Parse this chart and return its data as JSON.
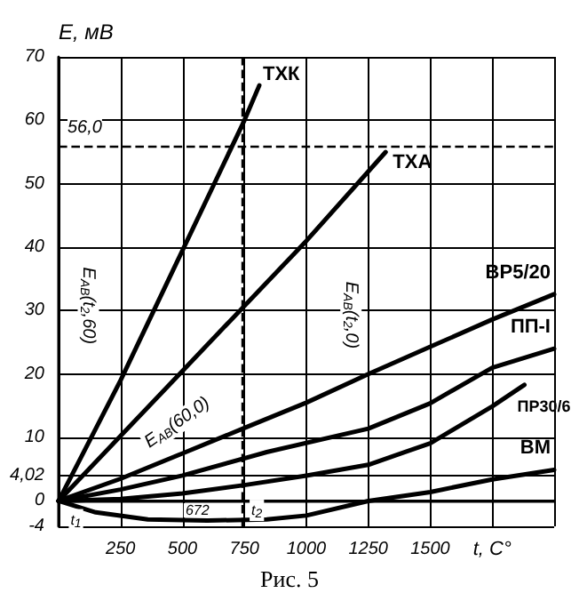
{
  "chart_data": {
    "type": "line",
    "xlabel": "t, C°",
    "ylabel": "E, мВ",
    "xlim": [
      0,
      2000
    ],
    "xticks": [
      {
        "value": 0,
        "label": null
      },
      250,
      500,
      750,
      1000,
      1250,
      1500,
      {
        "value": 1750,
        "label": null
      },
      {
        "value": 2000,
        "label": null
      }
    ],
    "ylim": [
      -4,
      70
    ],
    "yticks": [
      -4,
      0,
      {
        "value": 4.02,
        "label": "4,02"
      },
      10,
      20,
      30,
      40,
      50,
      60,
      70
    ],
    "grid": true,
    "line_style": "solid",
    "legend": false,
    "series": [
      {
        "name": "ТХК",
        "color": "#000000",
        "x": [
          0,
          250,
          500,
          750,
          810
        ],
        "values": [
          0,
          19,
          39.5,
          60,
          65.5
        ]
      },
      {
        "name": "ТХА",
        "color": "#000000",
        "x": [
          0,
          500,
          1000,
          1320
        ],
        "values": [
          0,
          20.5,
          41,
          55
        ]
      },
      {
        "name": "ВР5/20",
        "color": "#000000",
        "x": [
          0,
          250,
          500,
          750,
          1000,
          1250,
          1500,
          1750,
          2000
        ],
        "values": [
          0,
          3.5,
          7.5,
          11.5,
          15.5,
          20,
          24.3,
          28.6,
          32.6
        ]
      },
      {
        "name": "ПП-I",
        "color": "#000000",
        "x": [
          0,
          250,
          500,
          840,
          1250,
          1500,
          1750,
          2000
        ],
        "values": [
          0,
          1.8,
          4,
          7.7,
          11.4,
          15.4,
          21,
          24
        ]
      },
      {
        "name": "ПР30/6",
        "color": "#000000",
        "x": [
          0,
          250,
          500,
          750,
          1000,
          1250,
          1500,
          1750,
          1880
        ],
        "values": [
          0,
          0.3,
          1.2,
          2.5,
          4,
          5.7,
          9.1,
          14.9,
          18.3
        ]
      },
      {
        "name": "ВМ",
        "color": "#000000",
        "x": [
          0,
          150,
          360,
          600,
          840,
          1000,
          1250,
          1500,
          1750,
          2000
        ],
        "values": [
          0,
          -1.8,
          -2.9,
          -3.1,
          -2.9,
          -2.3,
          0,
          1.4,
          3.4,
          4.9
        ]
      }
    ],
    "ref_lines": [
      {
        "axis": "y",
        "value": 56,
        "label": "56,0",
        "line_style": "dashed",
        "color": "#000000"
      },
      {
        "axis": "x",
        "value": 740,
        "line_style": "dashed",
        "color": "#000000"
      }
    ],
    "annotations": [
      "E$_{AB}$(t$_{2}$,60)",
      "E$_{AB}$(60,0)",
      "E$_{AB}$(t$_{2}$,0)",
      "672",
      "t$_{2}$",
      "t$_{1}$",
      "Рис. 5"
    ]
  }
}
